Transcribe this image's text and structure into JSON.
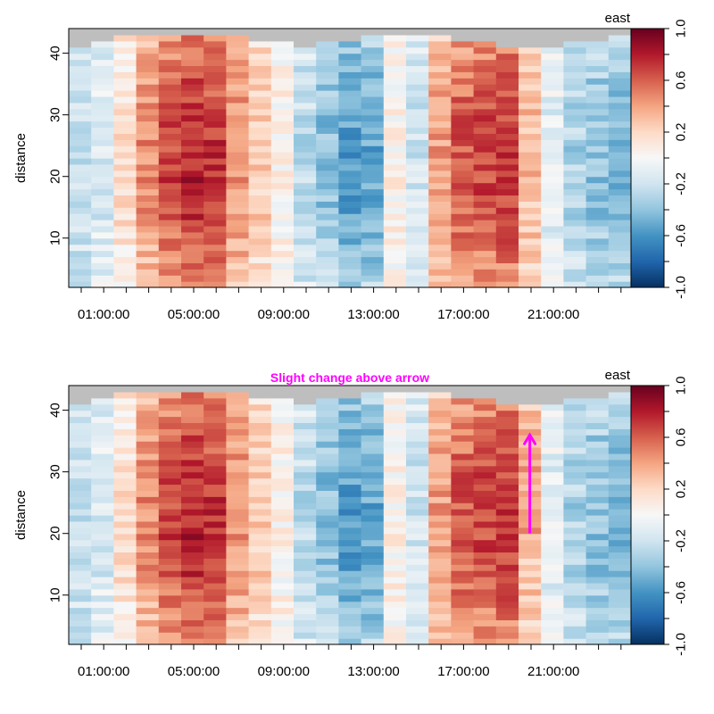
{
  "chart_data": [
    {
      "type": "heatmap",
      "title": "",
      "xlabel": "",
      "ylabel": "distance",
      "colorbar_title": "east",
      "x_tick_labels": [
        "01:00:00",
        "05:00:00",
        "09:00:00",
        "13:00:00",
        "17:00:00",
        "21:00:00"
      ],
      "y_ticks": [
        10,
        20,
        30,
        40
      ],
      "colorbar_ticks": [
        "1.0",
        "0.6",
        "0.2",
        "-0.2",
        "-0.6",
        "-1.0"
      ],
      "colorbar_range": [
        -1.0,
        1.0
      ],
      "ylim": [
        2,
        44
      ],
      "columns": 25,
      "column_profile": [
        -0.25,
        -0.15,
        0.15,
        0.45,
        0.65,
        0.75,
        0.7,
        0.45,
        0.25,
        0.05,
        -0.25,
        -0.4,
        -0.55,
        -0.5,
        0.05,
        -0.2,
        0.4,
        0.6,
        0.65,
        0.7,
        0.3,
        -0.1,
        -0.3,
        -0.4,
        -0.45
      ],
      "missing_top_from": [
        41.5,
        42.5,
        43,
        43,
        43,
        43,
        43,
        43,
        42.5,
        42,
        41.5,
        42,
        42.5,
        43,
        43,
        43,
        43,
        42.5,
        42,
        41.5,
        41,
        41.5,
        42,
        42.5,
        43
      ]
    },
    {
      "type": "heatmap",
      "title": "Slight change above arrow",
      "xlabel": "",
      "ylabel": "distance",
      "colorbar_title": "east",
      "x_tick_labels": [
        "01:00:00",
        "05:00:00",
        "09:00:00",
        "13:00:00",
        "17:00:00",
        "21:00:00"
      ],
      "y_ticks": [
        10,
        20,
        30,
        40
      ],
      "colorbar_ticks": [
        "1.0",
        "0.6",
        "0.2",
        "-0.2",
        "-0.6",
        "-1.0"
      ],
      "colorbar_range": [
        -1.0,
        1.0
      ],
      "ylim": [
        2,
        44
      ],
      "columns": 25,
      "column_profile": [
        -0.25,
        -0.15,
        0.15,
        0.45,
        0.65,
        0.75,
        0.7,
        0.45,
        0.25,
        0.05,
        -0.25,
        -0.4,
        -0.55,
        -0.5,
        0.05,
        -0.2,
        0.4,
        0.6,
        0.65,
        0.7,
        0.3,
        -0.1,
        -0.3,
        -0.4,
        -0.45
      ],
      "missing_top_from": [
        41.5,
        42.5,
        43,
        43,
        43,
        43,
        43,
        43,
        42.5,
        42,
        41.5,
        42,
        42.5,
        43,
        43,
        43,
        43,
        42.5,
        42,
        41.5,
        41,
        41.5,
        42,
        42.5,
        43
      ],
      "arrow": {
        "column": 20,
        "from_distance": 20,
        "to_distance": 36
      }
    }
  ]
}
